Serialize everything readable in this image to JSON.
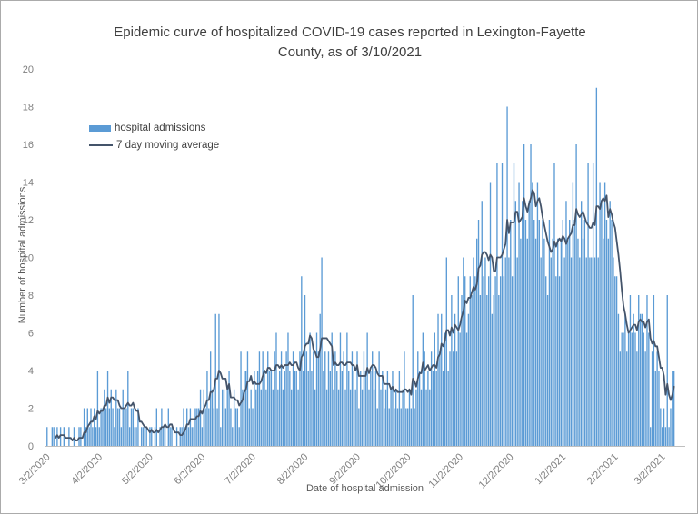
{
  "title": "Epidemic curve of hospitalized COVID-19 cases reported in Lexington-Fayette County, as of 3/10/2021",
  "title_lines": [
    "Epidemic curve of hospitalized COVID-19 cases reported in Lexington-Fayette",
    "County, as of 3/10/2021"
  ],
  "legend": [
    {
      "label": "hospital admissions",
      "type": "bar",
      "color": "#5B9BD5"
    },
    {
      "label": "7 day moving average",
      "type": "line",
      "color": "#44546A"
    }
  ],
  "y_axis": {
    "label": "Number of hospital admissions",
    "min": 0,
    "max": 20,
    "step": 2,
    "ticks": [
      0,
      2,
      4,
      6,
      8,
      10,
      12,
      14,
      16,
      18,
      20
    ]
  },
  "x_axis": {
    "label": "Date of hospital admission",
    "ticks": [
      {
        "label": "3/2/2020",
        "day_index": 0
      },
      {
        "label": "4/2/2020",
        "day_index": 31
      },
      {
        "label": "5/2/2020",
        "day_index": 61
      },
      {
        "label": "6/2/2020",
        "day_index": 92
      },
      {
        "label": "7/2/2020",
        "day_index": 122
      },
      {
        "label": "8/2/2020",
        "day_index": 153
      },
      {
        "label": "9/2/2020",
        "day_index": 184
      },
      {
        "label": "10/2/2020",
        "day_index": 214
      },
      {
        "label": "11/2/2020",
        "day_index": 245
      },
      {
        "label": "12/2/2020",
        "day_index": 275
      },
      {
        "label": "1/2/2021",
        "day_index": 306
      },
      {
        "label": "2/2/2021",
        "day_index": 337
      },
      {
        "label": "3/2/2021",
        "day_index": 365
      }
    ]
  },
  "chart_data": {
    "type": "bar",
    "title": "Epidemic curve of hospitalized COVID-19 cases reported in Lexington-Fayette County, as of 3/10/2021",
    "xlabel": "Date of hospital admission",
    "ylabel": "Number of hospital admissions",
    "ylim": [
      0,
      20
    ],
    "grid": false,
    "legend_position": "inside-top-left",
    "x_start_date": "3/2/2020",
    "x_end_date": "3/10/2021",
    "x_tick_labels": [
      "3/2/2020",
      "4/2/2020",
      "5/2/2020",
      "6/2/2020",
      "7/2/2020",
      "8/2/2020",
      "9/2/2020",
      "10/2/2020",
      "11/2/2020",
      "12/2/2020",
      "1/2/2021",
      "2/2/2021",
      "3/2/2021"
    ],
    "series": [
      {
        "name": "hospital admissions",
        "type": "bar",
        "color": "#5B9BD5",
        "note": "daily values (estimated from pixels), one per day 3/2/2020 through 3/10/2021",
        "values": [
          0,
          1,
          0,
          0,
          1,
          1,
          0,
          1,
          0,
          1,
          0,
          1,
          0,
          0,
          1,
          0,
          0,
          1,
          0,
          0,
          1,
          1,
          0,
          2,
          1,
          2,
          1,
          2,
          1,
          2,
          1,
          4,
          1,
          2,
          2,
          3,
          2,
          4,
          2,
          3,
          2,
          1,
          3,
          2,
          2,
          1,
          3,
          2,
          2,
          4,
          1,
          2,
          2,
          1,
          1,
          2,
          0,
          1,
          1,
          1,
          1,
          0,
          1,
          1,
          0,
          1,
          2,
          0,
          1,
          2,
          1,
          1,
          0,
          2,
          1,
          1,
          0,
          0,
          1,
          0,
          1,
          1,
          2,
          1,
          2,
          1,
          2,
          1,
          1,
          2,
          2,
          2,
          3,
          1,
          3,
          2,
          4,
          2,
          5,
          3,
          2,
          7,
          2,
          7,
          1,
          3,
          3,
          2,
          3,
          4,
          2,
          1,
          3,
          2,
          2,
          1,
          5,
          3,
          4,
          4,
          5,
          2,
          3,
          2,
          4,
          3,
          4,
          5,
          3,
          5,
          4,
          3,
          5,
          4,
          4,
          3,
          5,
          6,
          3,
          4,
          5,
          3,
          4,
          5,
          6,
          4,
          3,
          5,
          4,
          4,
          3,
          5,
          9,
          4,
          8,
          5,
          4,
          6,
          4,
          5,
          3,
          6,
          5,
          7,
          10,
          4,
          5,
          3,
          5,
          4,
          6,
          3,
          5,
          4,
          3,
          6,
          4,
          5,
          3,
          6,
          4,
          3,
          5,
          4,
          3,
          5,
          2,
          4,
          3,
          5,
          4,
          6,
          3,
          4,
          5,
          3,
          4,
          2,
          5,
          3,
          4,
          2,
          3,
          4,
          2,
          3,
          4,
          2,
          3,
          2,
          4,
          2,
          3,
          5,
          2,
          2,
          3,
          2,
          8,
          2,
          3,
          5,
          4,
          3,
          6,
          5,
          3,
          4,
          3,
          5,
          4,
          6,
          4,
          7,
          5,
          7,
          4,
          6,
          10,
          4,
          5,
          8,
          5,
          7,
          5,
          9,
          6,
          8,
          10,
          9,
          6,
          7,
          9,
          8,
          10,
          9,
          11,
          12,
          8,
          13,
          9,
          10,
          8,
          9,
          14,
          7,
          8,
          9,
          15,
          8,
          9,
          15,
          9,
          10,
          18,
          10,
          12,
          9,
          15,
          13,
          10,
          14,
          11,
          13,
          16,
          12,
          11,
          13,
          16,
          14,
          12,
          11,
          14,
          12,
          10,
          12,
          11,
          9,
          8,
          12,
          10,
          11,
          15,
          9,
          11,
          9,
          11,
          12,
          10,
          13,
          11,
          12,
          10,
          14,
          12,
          16,
          11,
          10,
          13,
          11,
          12,
          10,
          15,
          10,
          10,
          15,
          10,
          19,
          10,
          14,
          13,
          11,
          14,
          12,
          11,
          13,
          12,
          10,
          9,
          9,
          7,
          5,
          6,
          6,
          7,
          5,
          6,
          8,
          6,
          7,
          6,
          5,
          8,
          7,
          7,
          6,
          5,
          8,
          6,
          1,
          5,
          8,
          4,
          5,
          4,
          2,
          1,
          2,
          1,
          8,
          1,
          2,
          4,
          4
        ]
      },
      {
        "name": "7 day moving average",
        "type": "line",
        "color": "#44546A",
        "window": 7,
        "derived_from": "hospital admissions (trailing 7-day mean, drawn from day 7 onward)"
      }
    ]
  },
  "colors": {
    "bar": "#5B9BD5",
    "line": "#44546A",
    "axis_line": "#bfbfbf",
    "tick_label": "#7f7f7f",
    "axis_title": "#595959",
    "title_text": "#3f3f3f"
  }
}
